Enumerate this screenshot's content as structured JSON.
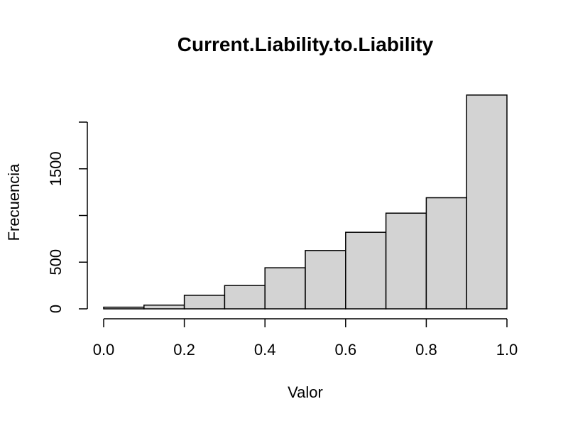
{
  "chart_data": {
    "type": "bar",
    "title": "Current.Liability.to.Liability",
    "xlabel": "Valor",
    "ylabel": "Frecuencia",
    "bin_edges": [
      0.0,
      0.1,
      0.2,
      0.3,
      0.4,
      0.5,
      0.6,
      0.7,
      0.8,
      0.9,
      1.0
    ],
    "values": [
      18,
      40,
      145,
      250,
      440,
      625,
      820,
      1025,
      1190,
      2290
    ],
    "xlim": [
      0.0,
      1.0
    ],
    "ylim": [
      0,
      2300
    ],
    "x_ticks": [
      {
        "value": 0.0,
        "label": "0.0"
      },
      {
        "value": 0.2,
        "label": "0.2"
      },
      {
        "value": 0.4,
        "label": "0.4"
      },
      {
        "value": 0.6,
        "label": "0.6"
      },
      {
        "value": 0.8,
        "label": "0.8"
      },
      {
        "value": 1.0,
        "label": "1.0"
      }
    ],
    "y_ticks": [
      {
        "value": 0,
        "label": "0"
      },
      {
        "value": 500,
        "label": "500"
      },
      {
        "value": 1000,
        "label": ""
      },
      {
        "value": 1500,
        "label": "1500"
      },
      {
        "value": 2000,
        "label": ""
      }
    ],
    "bar_fill": "#d3d3d3",
    "grid": false,
    "legend": "none"
  }
}
